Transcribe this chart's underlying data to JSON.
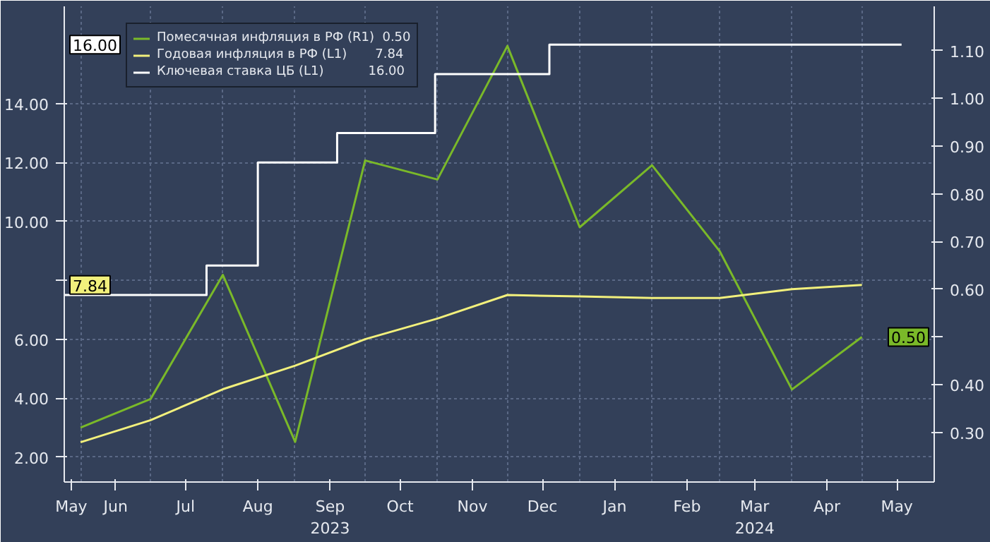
{
  "chart_data": {
    "type": "line",
    "xlim": [
      "2023-05-24",
      "2024-05-31"
    ],
    "xticks": [
      {
        "value": "2023-05-27",
        "label": "May"
      },
      {
        "value": "2023-06-15",
        "label": "Jun"
      },
      {
        "value": "2023-07-15",
        "label": "Jul"
      },
      {
        "value": "2023-08-15",
        "label": "Aug"
      },
      {
        "value": "2023-09-15",
        "label": "Sep\n2023"
      },
      {
        "value": "2023-10-15",
        "label": "Oct"
      },
      {
        "value": "2023-11-15",
        "label": "Nov"
      },
      {
        "value": "2023-12-15",
        "label": "Dec"
      },
      {
        "value": "2024-01-15",
        "label": "Jan"
      },
      {
        "value": "2024-02-15",
        "label": "Feb"
      },
      {
        "value": "2024-03-15",
        "label": "Mar\n2024"
      },
      {
        "value": "2024-04-15",
        "label": "Apr"
      },
      {
        "value": "2024-05-15",
        "label": "May"
      }
    ],
    "x": [
      "2023-05-31",
      "2023-06-30",
      "2023-07-31",
      "2023-08-31",
      "2023-09-30",
      "2023-10-31",
      "2023-11-30",
      "2023-12-31",
      "2024-01-31",
      "2024-02-29",
      "2024-03-31",
      "2024-04-30"
    ],
    "ylim": [
      1.15,
      17.3
    ],
    "yticks": [
      {
        "value": 2.0,
        "label": "2.00"
      },
      {
        "value": 4.0,
        "label": "4.00"
      },
      {
        "value": 6.0,
        "label": "6.00"
      },
      {
        "value": 8.0,
        "label": null
      },
      {
        "value": 10.0,
        "label": "10.00"
      },
      {
        "value": 12.0,
        "label": "12.00"
      },
      {
        "value": 14.0,
        "label": "14.00"
      }
    ],
    "y2lim": [
      0.196,
      1.193
    ],
    "y2ticks": [
      {
        "value": 0.3,
        "label": "0.30"
      },
      {
        "value": 0.4,
        "label": "0.40"
      },
      {
        "value": 0.5,
        "label": null
      },
      {
        "value": 0.6,
        "label": "0.60"
      },
      {
        "value": 0.7,
        "label": "0.70"
      },
      {
        "value": 0.8,
        "label": "0.80"
      },
      {
        "value": 0.9,
        "label": "0.90"
      },
      {
        "value": 1.0,
        "label": "1.00"
      },
      {
        "value": 1.1,
        "label": "1.10"
      }
    ],
    "series": [
      {
        "name": "Помесячная инфляция в РФ (R1)  0.50",
        "color": "#7ab929",
        "axis": "y2",
        "values": [
          0.31,
          0.37,
          0.63,
          0.28,
          0.87,
          0.83,
          1.11,
          0.73,
          0.86,
          0.68,
          0.39,
          0.5
        ]
      },
      {
        "name": "Годовая инфляция в РФ (L1)       7.84",
        "color": "#f2f07c",
        "values": [
          2.5,
          3.25,
          4.3,
          5.1,
          6.0,
          6.7,
          7.5,
          7.45,
          7.4,
          7.4,
          7.7,
          7.84
        ]
      },
      {
        "name": "Ключевая ставка ЦБ (L1)           16.00",
        "color": "#ffffff",
        "type": "step",
        "x": [
          "2023-05-24",
          "2023-07-24",
          "2023-08-15",
          "2023-09-18",
          "2023-10-30",
          "2023-12-18",
          "2024-05-17"
        ],
        "values": [
          7.5,
          8.5,
          12.0,
          13.0,
          15.0,
          16.0,
          16.0
        ]
      }
    ],
    "annotations": [
      "0.50",
      "7.84",
      "16.00"
    ],
    "grid": true,
    "legend": "top left"
  }
}
